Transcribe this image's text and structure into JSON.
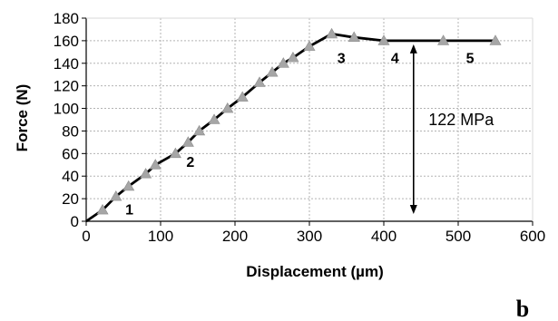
{
  "chart_data": {
    "type": "line",
    "xlabel": "Displacement (µm)",
    "ylabel": "Force (N)",
    "xlim": [
      0,
      600
    ],
    "ylim": [
      0,
      180
    ],
    "x_ticks": [
      "0",
      "100",
      "200",
      "300",
      "400",
      "500",
      "600"
    ],
    "y_ticks": [
      "0",
      "20",
      "40",
      "60",
      "80",
      "100",
      "120",
      "140",
      "160",
      "180"
    ],
    "grid": "dashed",
    "legend": "none",
    "series": [
      {
        "color": "#000000",
        "marker_color": "#a6a6a6",
        "marker": "triangle",
        "points": [
          {
            "x": 0,
            "y": 0
          },
          {
            "x": 22,
            "y": 10
          },
          {
            "x": 40,
            "y": 22
          },
          {
            "x": 57,
            "y": 31
          },
          {
            "x": 80,
            "y": 42
          },
          {
            "x": 93,
            "y": 50
          },
          {
            "x": 120,
            "y": 60
          },
          {
            "x": 137,
            "y": 70
          },
          {
            "x": 152,
            "y": 80
          },
          {
            "x": 172,
            "y": 90
          },
          {
            "x": 190,
            "y": 100
          },
          {
            "x": 210,
            "y": 110
          },
          {
            "x": 233,
            "y": 123
          },
          {
            "x": 250,
            "y": 132
          },
          {
            "x": 265,
            "y": 140
          },
          {
            "x": 278,
            "y": 145
          },
          {
            "x": 300,
            "y": 155
          },
          {
            "x": 330,
            "y": 166
          },
          {
            "x": 360,
            "y": 163
          },
          {
            "x": 400,
            "y": 160
          },
          {
            "x": 480,
            "y": 160
          },
          {
            "x": 550,
            "y": 160
          }
        ]
      }
    ],
    "annotations": {
      "point_labels": [
        {
          "text": "1",
          "x": 58,
          "y": 11
        },
        {
          "text": "2",
          "x": 140,
          "y": 53
        },
        {
          "text": "3",
          "x": 343,
          "y": 145
        },
        {
          "text": "4",
          "x": 415,
          "y": 145
        },
        {
          "text": "5",
          "x": 516,
          "y": 145
        }
      ],
      "stress_arrow": {
        "x": 440,
        "y_from": 160,
        "y_to": 0,
        "label": "122 MPa",
        "label_x": 460,
        "label_y": 90
      }
    },
    "panel_label": "b"
  }
}
